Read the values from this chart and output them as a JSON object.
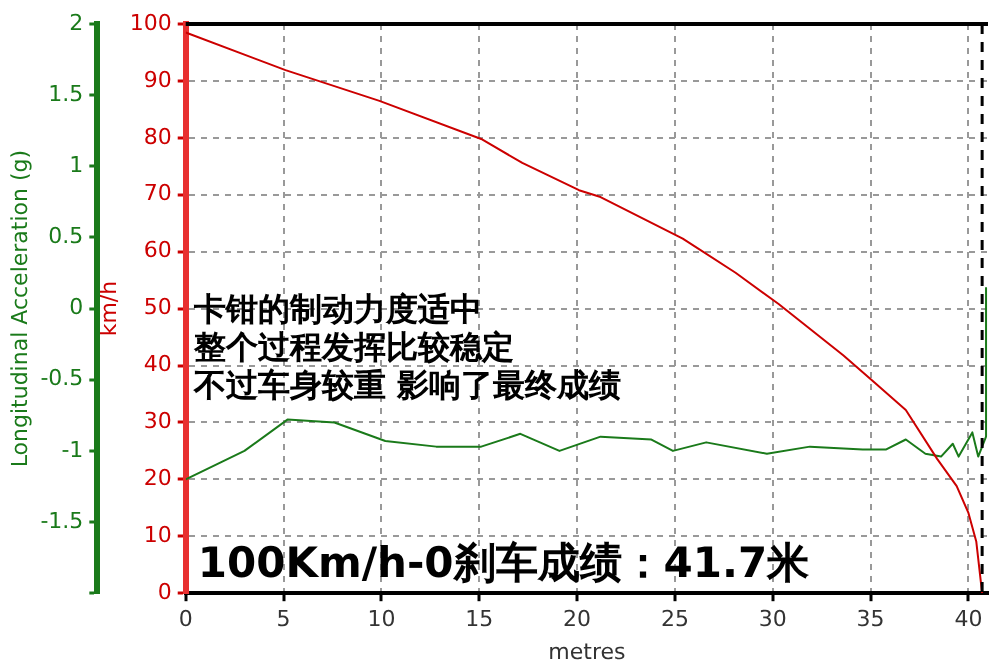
{
  "chart_data": {
    "type": "line",
    "xlabel": "metres",
    "ylabel": "km/h",
    "y2label": "Longitudinal Acceleration (g)",
    "xlim": [
      0,
      41
    ],
    "xticks": [
      0,
      5,
      10,
      15,
      20,
      25,
      30,
      35,
      40
    ],
    "ylim": [
      0,
      100
    ],
    "yticks": [
      0,
      10,
      20,
      30,
      40,
      50,
      60,
      70,
      80,
      90,
      100
    ],
    "y2lim": [
      -2,
      2
    ],
    "y2ticks": [
      {
        "value": -2,
        "label": null
      },
      -1.5,
      -1,
      -0.5,
      0,
      0.5,
      1,
      1.5,
      2
    ],
    "grid": true,
    "legend": false,
    "marker": "none",
    "line_style": "solid",
    "series": [
      {
        "color": "#cc0000",
        "x": [
          0,
          5.1,
          9.9,
          15.1,
          17.2,
          20.1,
          21.2,
          25.4,
          28.1,
          30.3,
          33.6,
          35.2,
          36.8,
          38.4,
          39.4,
          40,
          40.4,
          40.7
        ],
        "values": [
          98.5,
          91.9,
          86.5,
          79.8,
          75.6,
          70.8,
          69.6,
          62.3,
          56.3,
          50.8,
          41.8,
          37,
          32.2,
          23.6,
          18.8,
          14.1,
          9.1,
          0
        ]
      },
      {
        "color": "#1a7a1a",
        "axis": "y2",
        "x": [
          0,
          3,
          5.2,
          7.6,
          10.2,
          12.8,
          15.1,
          17.1,
          19.1,
          21.2,
          23.8,
          24.9,
          26.6,
          29.7,
          31.9,
          34.6,
          35.8,
          36.8,
          37.8,
          38.6,
          39.2,
          39.5,
          40.2,
          40.5,
          40.9,
          40.9
        ],
        "values": [
          -1.2,
          -1,
          -0.78,
          -0.8,
          -0.93,
          -0.97,
          -0.97,
          -0.88,
          -1,
          -0.9,
          -0.92,
          -1,
          -0.94,
          -1.02,
          -0.97,
          -0.99,
          -0.99,
          -0.92,
          -1.02,
          -1.04,
          -0.95,
          -1.04,
          -0.87,
          -1.04,
          -0.9,
          0.15
        ]
      }
    ],
    "ref_lines": [
      {
        "axis": "x",
        "value": 40.7,
        "color": "#000000",
        "line_style": "dashed"
      }
    ],
    "annotations": [
      "卡钳的制动力度适中",
      "整个过程发挥比较稳定",
      "不过车身较重 影响了最终成绩",
      "100Km/h-0刹车成绩：41.7米"
    ]
  }
}
